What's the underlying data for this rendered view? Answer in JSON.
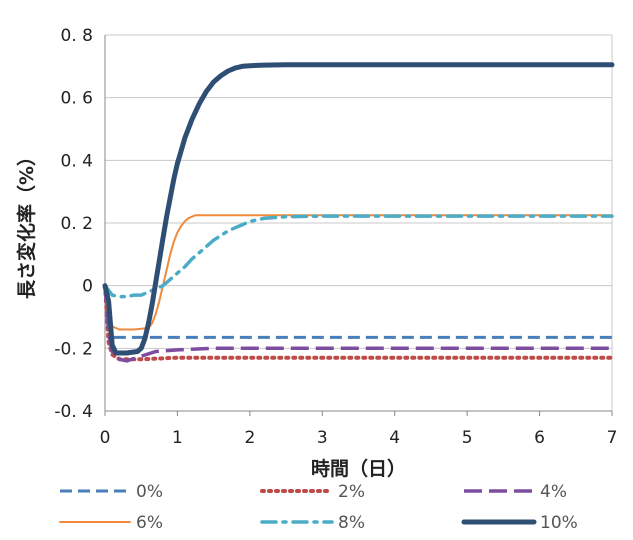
{
  "chart_data": {
    "type": "line",
    "xlabel": "時間（日）",
    "ylabel": "長さ変化率（%）",
    "xlim": [
      0,
      7
    ],
    "ylim": [
      -0.4,
      0.8
    ],
    "x_ticks": [
      "0",
      "1",
      "2",
      "3",
      "4",
      "5",
      "6",
      "7"
    ],
    "y_ticks": [
      "0.8",
      "0.6",
      "0.4",
      "0.2",
      "0",
      "-0.2",
      "-0.4"
    ],
    "grid": "horizontal",
    "legend_position": "bottom",
    "series": [
      {
        "name": "0%",
        "color": "#4a7ebb",
        "style": "dash",
        "x": [
          0,
          0.05,
          0.1,
          7
        ],
        "y": [
          0,
          -0.12,
          -0.165,
          -0.165
        ]
      },
      {
        "name": "2%",
        "color": "#be4b48",
        "style": "dot",
        "x": [
          0,
          0.05,
          0.1,
          0.2,
          0.5,
          1,
          7
        ],
        "y": [
          0,
          -0.18,
          -0.22,
          -0.235,
          -0.235,
          -0.23,
          -0.23
        ]
      },
      {
        "name": "4%",
        "color": "#7d4da0",
        "style": "longdash",
        "x": [
          0,
          0.05,
          0.1,
          0.2,
          0.3,
          0.5,
          0.7,
          1,
          1.5,
          7
        ],
        "y": [
          0,
          -0.15,
          -0.21,
          -0.235,
          -0.24,
          -0.225,
          -0.21,
          -0.205,
          -0.2,
          -0.2
        ]
      },
      {
        "name": "6%",
        "color": "#f08a3c",
        "style": "solid",
        "x": [
          0,
          0.05,
          0.1,
          0.2,
          0.4,
          0.6,
          0.65,
          0.7,
          0.75,
          0.8,
          0.85,
          0.9,
          0.95,
          1.0,
          1.05,
          1.1,
          1.15,
          1.2,
          1.25,
          1.3,
          7
        ],
        "y": [
          0,
          -0.1,
          -0.13,
          -0.14,
          -0.14,
          -0.135,
          -0.12,
          -0.09,
          -0.05,
          0.0,
          0.05,
          0.1,
          0.14,
          0.17,
          0.19,
          0.205,
          0.215,
          0.22,
          0.225,
          0.225,
          0.225
        ]
      },
      {
        "name": "8%",
        "color": "#4bacc6",
        "style": "dashdot",
        "x": [
          0,
          0.1,
          0.2,
          0.3,
          0.4,
          0.5,
          0.6,
          0.7,
          0.8,
          0.9,
          1.0,
          1.1,
          1.2,
          1.3,
          1.4,
          1.5,
          1.6,
          1.7,
          1.8,
          1.9,
          2.0,
          2.2,
          2.5,
          3,
          7
        ],
        "y": [
          0,
          -0.03,
          -0.035,
          -0.035,
          -0.03,
          -0.03,
          -0.02,
          -0.01,
          0.0,
          0.02,
          0.04,
          0.06,
          0.085,
          0.105,
          0.125,
          0.145,
          0.16,
          0.175,
          0.185,
          0.195,
          0.205,
          0.215,
          0.22,
          0.222,
          0.222
        ]
      },
      {
        "name": "10%",
        "color": "#2f4e73",
        "style": "thick",
        "x": [
          0,
          0.05,
          0.1,
          0.15,
          0.3,
          0.45,
          0.5,
          0.55,
          0.6,
          0.65,
          0.7,
          0.75,
          0.8,
          0.85,
          0.9,
          0.95,
          1.0,
          1.05,
          1.1,
          1.15,
          1.2,
          1.3,
          1.4,
          1.5,
          1.6,
          1.7,
          1.8,
          1.9,
          2.0,
          2.1,
          2.2,
          2.5,
          3,
          7
        ],
        "y": [
          0,
          -0.05,
          -0.19,
          -0.215,
          -0.215,
          -0.21,
          -0.2,
          -0.17,
          -0.12,
          -0.06,
          0.01,
          0.08,
          0.15,
          0.22,
          0.28,
          0.34,
          0.39,
          0.43,
          0.47,
          0.5,
          0.53,
          0.58,
          0.62,
          0.65,
          0.67,
          0.685,
          0.695,
          0.7,
          0.702,
          0.703,
          0.704,
          0.705,
          0.705,
          0.705
        ]
      }
    ]
  }
}
